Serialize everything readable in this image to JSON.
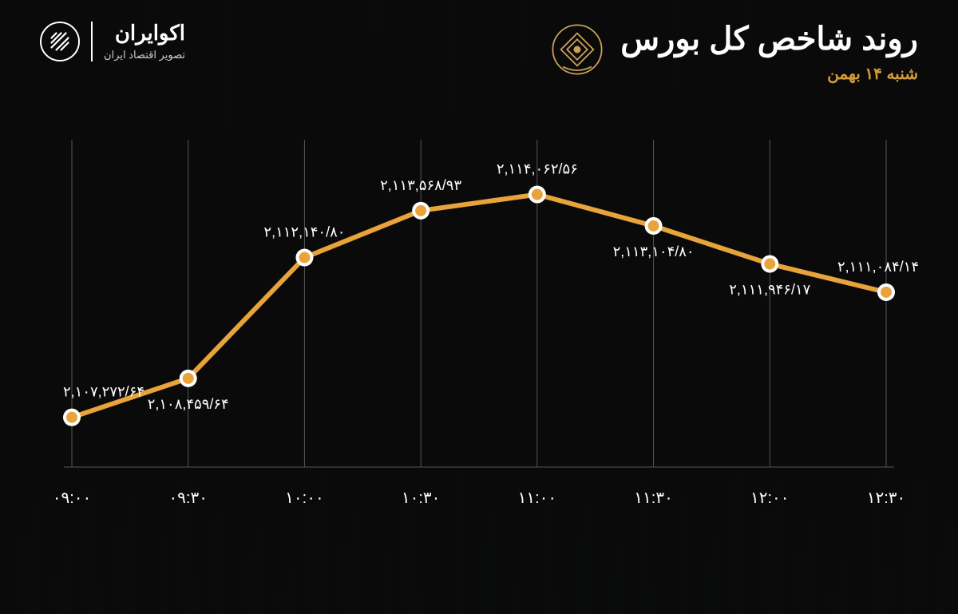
{
  "brand": {
    "name": "اکوایران",
    "tagline": "تصویر اقتصاد ایران"
  },
  "title": {
    "main": "روند شاخص کل بورس",
    "sub": "شنبه ۱۴ بهمن"
  },
  "chart": {
    "type": "line",
    "line_color": "#e8a33b",
    "marker_fill": "#e8a33b",
    "marker_outline": "#ffffff",
    "marker_radius_outer": 11,
    "marker_radius_inner": 7,
    "line_width": 6,
    "grid_color": "#555555",
    "background": "#0a0a0a",
    "label_color": "#ffffff",
    "label_fontsize": 18,
    "xaxis_fontsize": 20,
    "y_min": 2106000,
    "y_max": 2115000,
    "x_labels": [
      "۰۹:۰۰",
      "۰۹:۳۰",
      "۱۰:۰۰",
      "۱۰:۳۰",
      "۱۱:۰۰",
      "۱۱:۳۰",
      "۱۲:۰۰",
      "۱۲:۳۰"
    ],
    "points": [
      {
        "x": "۰۹:۰۰",
        "value": 2107272.64,
        "label": "۲,۱۰۷,۲۷۲/۶۴",
        "label_pos": "above"
      },
      {
        "x": "۰۹:۳۰",
        "value": 2108459.64,
        "label": "۲,۱۰۸,۴۵۹/۶۴",
        "label_pos": "below"
      },
      {
        "x": "۱۰:۰۰",
        "value": 2112140.8,
        "label": "۲,۱۱۲,۱۴۰/۸۰",
        "label_pos": "above"
      },
      {
        "x": "۱۰:۳۰",
        "value": 2113568.93,
        "label": "۲,۱۱۳,۵۶۸/۹۳",
        "label_pos": "above"
      },
      {
        "x": "۱۱:۰۰",
        "value": 2114062.56,
        "label": "۲,۱۱۴,۰۶۲/۵۶",
        "label_pos": "above"
      },
      {
        "x": "۱۱:۳۰",
        "value": 2113104.8,
        "label": "۲,۱۱۳,۱۰۴/۸۰",
        "label_pos": "below"
      },
      {
        "x": "۱۲:۰۰",
        "value": 2111946.17,
        "label": "۲,۱۱۱,۹۴۶/۱۷",
        "label_pos": "below"
      },
      {
        "x": "۱۲:۳۰",
        "value": 2111084.14,
        "label": "۲,۱۱۱,۰۸۴/۱۴",
        "label_pos": "above"
      }
    ]
  }
}
